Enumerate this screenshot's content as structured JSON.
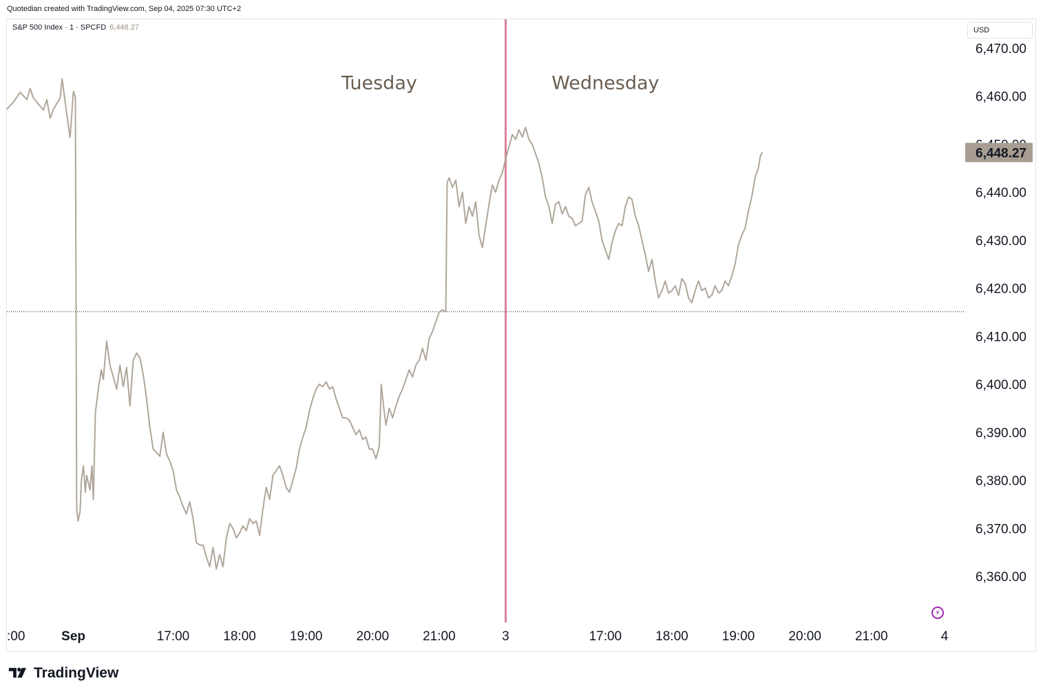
{
  "header": {
    "attribution": "Quotedian created with TradingView.com, Sep 04, 2025 07:30 UTC+2"
  },
  "legend": {
    "symbol": "S&P 500 Index · 1 · SPCFD",
    "last_value": "6,448.27"
  },
  "currency": "USD",
  "footer": {
    "brand": "TradingView"
  },
  "colors": {
    "line": "#b0a69b",
    "session_divider": "#d9819a",
    "reference_line": "#131722",
    "price_badge": "#a79d92"
  },
  "chart_data": {
    "type": "line",
    "title": "S&P 500 Index · 1 · SPCFD",
    "xlabel": "",
    "ylabel": "",
    "ylim": [
      6353.0,
      6474.0
    ],
    "y_ticks": [
      "6,470.00",
      "6,460.00",
      "6,450.00",
      "6,440.00",
      "6,430.00",
      "6,420.00",
      "6,410.00",
      "6,400.00",
      "6,390.00",
      "6,380.00",
      "6,370.00",
      "6,360.00"
    ],
    "x_tick_labels": [
      {
        "label": ":00",
        "t": 0.0,
        "bold": false
      },
      {
        "label": "Sep",
        "t": 1.0,
        "bold": true
      },
      {
        "label": "17:00",
        "t": 2.5,
        "bold": false
      },
      {
        "label": "18:00",
        "t": 3.5,
        "bold": false
      },
      {
        "label": "19:00",
        "t": 4.5,
        "bold": false
      },
      {
        "label": "20:00",
        "t": 5.5,
        "bold": false
      },
      {
        "label": "21:00",
        "t": 6.5,
        "bold": false
      },
      {
        "label": "3",
        "t": 7.5,
        "bold": false
      },
      {
        "label": "17:00",
        "t": 9.0,
        "bold": false
      },
      {
        "label": "18:00",
        "t": 10.0,
        "bold": false
      },
      {
        "label": "19:00",
        "t": 11.0,
        "bold": false
      },
      {
        "label": "20:00",
        "t": 12.0,
        "bold": false
      },
      {
        "label": "21:00",
        "t": 13.0,
        "bold": false
      },
      {
        "label": "4",
        "t": 14.1,
        "bold": false
      }
    ],
    "xlim": [
      0.0,
      14.1
    ],
    "session_divider_t": 7.5,
    "reference_price": 6415.1,
    "last_price": 6448.27,
    "last_price_label": "6,448.27",
    "annotations": [
      {
        "text": "Tuesday",
        "t": 5.6,
        "price": 6461.5
      },
      {
        "text": "Wednesday",
        "t": 9.0,
        "price": 6461.5
      }
    ],
    "series": [
      {
        "values": [
          [
            0.0,
            6457.3
          ],
          [
            0.1,
            6458.8
          ],
          [
            0.2,
            6460.8
          ],
          [
            0.3,
            6459.3
          ],
          [
            0.35,
            6461.6
          ],
          [
            0.4,
            6459.6
          ],
          [
            0.55,
            6457.1
          ],
          [
            0.6,
            6459.3
          ],
          [
            0.65,
            6455.4
          ],
          [
            0.7,
            6457.3
          ],
          [
            0.8,
            6459.6
          ],
          [
            0.83,
            6463.6
          ],
          [
            0.9,
            6456.4
          ],
          [
            0.95,
            6451.4
          ],
          [
            0.97,
            6455.1
          ],
          [
            1.0,
            6461.0
          ],
          [
            1.03,
            6459.8
          ],
          [
            1.04,
            6415.0
          ],
          [
            1.05,
            6374.0
          ],
          [
            1.07,
            6371.5
          ],
          [
            1.1,
            6373.5
          ],
          [
            1.12,
            6380.0
          ],
          [
            1.15,
            6383.0
          ],
          [
            1.18,
            6377.5
          ],
          [
            1.2,
            6381.0
          ],
          [
            1.25,
            6378.0
          ],
          [
            1.28,
            6383.0
          ],
          [
            1.3,
            6376.0
          ],
          [
            1.33,
            6394.0
          ],
          [
            1.38,
            6399.5
          ],
          [
            1.42,
            6403.0
          ],
          [
            1.45,
            6401.0
          ],
          [
            1.5,
            6409.0
          ],
          [
            1.55,
            6404.0
          ],
          [
            1.6,
            6401.5
          ],
          [
            1.65,
            6399.0
          ],
          [
            1.7,
            6404.0
          ],
          [
            1.75,
            6399.5
          ],
          [
            1.8,
            6403.5
          ],
          [
            1.85,
            6395.5
          ],
          [
            1.9,
            6405.0
          ],
          [
            1.95,
            6406.5
          ],
          [
            2.0,
            6405.5
          ],
          [
            2.05,
            6402.0
          ],
          [
            2.1,
            6397.0
          ],
          [
            2.15,
            6391.0
          ],
          [
            2.2,
            6386.5
          ],
          [
            2.3,
            6385.0
          ],
          [
            2.35,
            6390.0
          ],
          [
            2.4,
            6385.5
          ],
          [
            2.45,
            6384.0
          ],
          [
            2.5,
            6382.0
          ],
          [
            2.55,
            6378.0
          ],
          [
            2.6,
            6376.5
          ],
          [
            2.65,
            6374.5
          ],
          [
            2.7,
            6373.0
          ],
          [
            2.75,
            6375.5
          ],
          [
            2.8,
            6372.0
          ],
          [
            2.85,
            6367.0
          ],
          [
            2.9,
            6366.5
          ],
          [
            2.95,
            6366.5
          ],
          [
            3.0,
            6364.0
          ],
          [
            3.05,
            6362.0
          ],
          [
            3.1,
            6366.0
          ],
          [
            3.15,
            6361.5
          ],
          [
            3.2,
            6364.5
          ],
          [
            3.25,
            6362.0
          ],
          [
            3.3,
            6368.0
          ],
          [
            3.35,
            6371.0
          ],
          [
            3.4,
            6370.0
          ],
          [
            3.45,
            6368.0
          ],
          [
            3.5,
            6369.0
          ],
          [
            3.55,
            6370.5
          ],
          [
            3.6,
            6369.5
          ],
          [
            3.65,
            6372.0
          ],
          [
            3.7,
            6371.0
          ],
          [
            3.75,
            6371.5
          ],
          [
            3.8,
            6368.5
          ],
          [
            3.85,
            6374.0
          ],
          [
            3.9,
            6378.5
          ],
          [
            3.95,
            6376.0
          ],
          [
            4.0,
            6381.0
          ],
          [
            4.05,
            6382.0
          ],
          [
            4.1,
            6383.0
          ],
          [
            4.15,
            6381.0
          ],
          [
            4.2,
            6378.5
          ],
          [
            4.25,
            6377.5
          ],
          [
            4.3,
            6380.0
          ],
          [
            4.35,
            6382.5
          ],
          [
            4.4,
            6386.5
          ],
          [
            4.45,
            6389.0
          ],
          [
            4.5,
            6391.0
          ],
          [
            4.55,
            6394.5
          ],
          [
            4.6,
            6397.0
          ],
          [
            4.65,
            6399.0
          ],
          [
            4.7,
            6400.0
          ],
          [
            4.75,
            6399.5
          ],
          [
            4.8,
            6400.5
          ],
          [
            4.85,
            6399.0
          ],
          [
            4.9,
            6399.5
          ],
          [
            4.95,
            6397.0
          ],
          [
            5.0,
            6395.0
          ],
          [
            5.05,
            6393.0
          ],
          [
            5.1,
            6393.0
          ],
          [
            5.15,
            6392.5
          ],
          [
            5.2,
            6391.0
          ],
          [
            5.25,
            6389.5
          ],
          [
            5.3,
            6390.5
          ],
          [
            5.35,
            6388.5
          ],
          [
            5.4,
            6389.0
          ],
          [
            5.45,
            6386.5
          ],
          [
            5.5,
            6386.5
          ],
          [
            5.55,
            6384.5
          ],
          [
            5.6,
            6387.0
          ],
          [
            5.63,
            6400.0
          ],
          [
            5.66,
            6396.0
          ],
          [
            5.7,
            6391.5
          ],
          [
            5.75,
            6395.0
          ],
          [
            5.8,
            6393.0
          ],
          [
            5.85,
            6395.5
          ],
          [
            5.9,
            6397.5
          ],
          [
            5.95,
            6399.0
          ],
          [
            6.0,
            6401.0
          ],
          [
            6.05,
            6403.0
          ],
          [
            6.1,
            6401.5
          ],
          [
            6.15,
            6404.0
          ],
          [
            6.2,
            6405.0
          ],
          [
            6.25,
            6407.5
          ],
          [
            6.3,
            6405.0
          ],
          [
            6.35,
            6409.5
          ],
          [
            6.4,
            6411.0
          ],
          [
            6.45,
            6413.0
          ],
          [
            6.5,
            6415.0
          ],
          [
            6.55,
            6415.5
          ],
          [
            6.6,
            6415.1
          ],
          [
            6.62,
            6442.0
          ],
          [
            6.65,
            6443.0
          ],
          [
            6.7,
            6441.0
          ],
          [
            6.75,
            6442.5
          ],
          [
            6.8,
            6437.0
          ],
          [
            6.85,
            6440.0
          ],
          [
            6.9,
            6433.5
          ],
          [
            6.95,
            6437.0
          ],
          [
            7.0,
            6435.0
          ],
          [
            7.05,
            6438.0
          ],
          [
            7.1,
            6431.0
          ],
          [
            7.15,
            6428.5
          ],
          [
            7.2,
            6433.0
          ],
          [
            7.25,
            6437.5
          ],
          [
            7.3,
            6441.5
          ],
          [
            7.35,
            6440.0
          ],
          [
            7.4,
            6442.5
          ],
          [
            7.45,
            6444.0
          ],
          [
            7.5,
            6447.0
          ],
          [
            7.55,
            6449.5
          ],
          [
            7.6,
            6452.0
          ],
          [
            7.65,
            6451.0
          ],
          [
            7.7,
            6453.0
          ],
          [
            7.75,
            6451.5
          ],
          [
            7.8,
            6453.5
          ],
          [
            7.85,
            6451.0
          ],
          [
            7.9,
            6450.0
          ],
          [
            7.95,
            6448.0
          ],
          [
            8.0,
            6446.0
          ],
          [
            8.05,
            6443.0
          ],
          [
            8.1,
            6439.0
          ],
          [
            8.15,
            6437.0
          ],
          [
            8.2,
            6433.5
          ],
          [
            8.25,
            6437.5
          ],
          [
            8.3,
            6438.0
          ],
          [
            8.35,
            6435.5
          ],
          [
            8.4,
            6437.0
          ],
          [
            8.45,
            6435.0
          ],
          [
            8.5,
            6434.5
          ],
          [
            8.55,
            6433.0
          ],
          [
            8.6,
            6433.5
          ],
          [
            8.65,
            6434.0
          ],
          [
            8.7,
            6439.5
          ],
          [
            8.75,
            6441.0
          ],
          [
            8.8,
            6438.0
          ],
          [
            8.85,
            6436.0
          ],
          [
            8.9,
            6434.0
          ],
          [
            8.95,
            6430.0
          ],
          [
            9.0,
            6428.0
          ],
          [
            9.05,
            6426.0
          ],
          [
            9.1,
            6429.5
          ],
          [
            9.15,
            6432.0
          ],
          [
            9.2,
            6433.5
          ],
          [
            9.25,
            6433.0
          ],
          [
            9.3,
            6437.0
          ],
          [
            9.35,
            6439.0
          ],
          [
            9.4,
            6438.5
          ],
          [
            9.45,
            6435.0
          ],
          [
            9.5,
            6433.0
          ],
          [
            9.55,
            6430.0
          ],
          [
            9.6,
            6427.0
          ],
          [
            9.65,
            6423.5
          ],
          [
            9.7,
            6426.0
          ],
          [
            9.75,
            6421.5
          ],
          [
            9.8,
            6418.0
          ],
          [
            9.85,
            6419.5
          ],
          [
            9.9,
            6421.5
          ],
          [
            9.95,
            6419.0
          ],
          [
            10.0,
            6419.5
          ],
          [
            10.05,
            6420.5
          ],
          [
            10.1,
            6418.5
          ],
          [
            10.15,
            6422.0
          ],
          [
            10.2,
            6421.0
          ],
          [
            10.25,
            6418.0
          ],
          [
            10.3,
            6417.0
          ],
          [
            10.35,
            6419.5
          ],
          [
            10.4,
            6421.5
          ],
          [
            10.45,
            6419.5
          ],
          [
            10.5,
            6420.0
          ],
          [
            10.55,
            6418.0
          ],
          [
            10.6,
            6418.5
          ],
          [
            10.65,
            6420.5
          ],
          [
            10.7,
            6419.0
          ],
          [
            10.75,
            6419.5
          ],
          [
            10.8,
            6421.5
          ],
          [
            10.85,
            6420.5
          ],
          [
            10.9,
            6422.5
          ],
          [
            10.95,
            6425.0
          ],
          [
            11.0,
            6429.0
          ],
          [
            11.05,
            6431.0
          ],
          [
            11.1,
            6432.5
          ],
          [
            11.15,
            6436.0
          ],
          [
            11.2,
            6439.0
          ],
          [
            11.25,
            6443.0
          ],
          [
            11.3,
            6445.0
          ],
          [
            11.33,
            6447.5
          ],
          [
            11.36,
            6448.3
          ]
        ]
      }
    ]
  }
}
